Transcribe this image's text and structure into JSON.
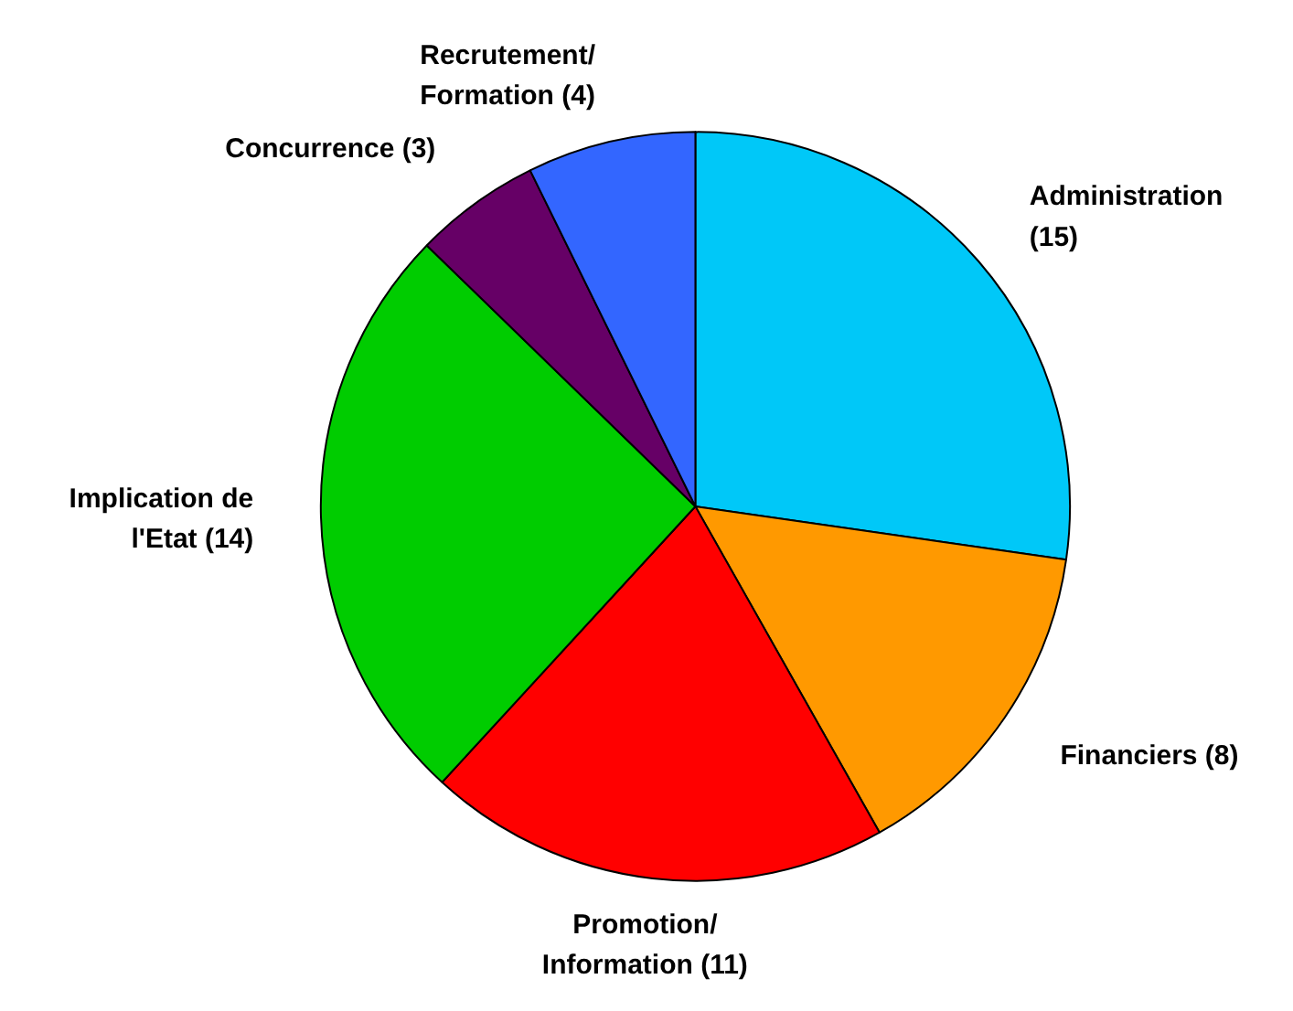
{
  "chart_data": {
    "type": "pie",
    "categories": [
      "Administration",
      "Financiers",
      "Promotion/ Information",
      "Implication de l'Etat",
      "Concurrence",
      "Recrutement/ Formation"
    ],
    "values": [
      15,
      8,
      11,
      14,
      3,
      4
    ],
    "value_labels": [
      "(15)",
      "(8)",
      "(11)",
      "(14)",
      "(3)",
      "(4)"
    ],
    "colors": [
      "#00c8f8",
      "#ff9900",
      "#ff0000",
      "#00cc00",
      "#660066",
      "#3366ff"
    ]
  }
}
